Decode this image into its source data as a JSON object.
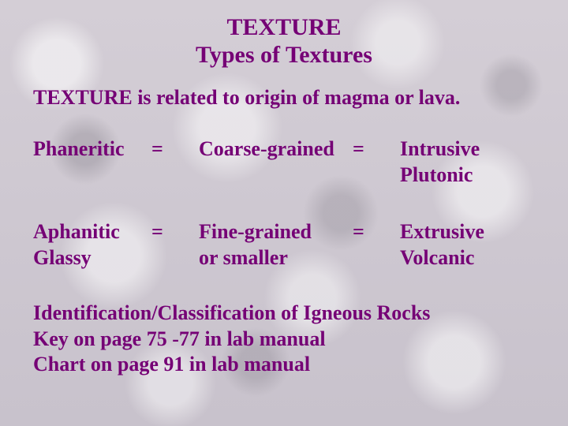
{
  "colors": {
    "text": "#750075",
    "bg_base": "#d0cbd3"
  },
  "typography": {
    "family": "Times New Roman",
    "title_size_pt": 22,
    "body_size_pt": 19,
    "weight": "bold"
  },
  "title": {
    "line1": "TEXTURE",
    "line2": "Types of Textures"
  },
  "intro": "TEXTURE is related to origin of magma or lava.",
  "rows": [
    {
      "left_l1": "Phaneritic",
      "left_l2": "",
      "eq1": "=",
      "mid_l1": "Coarse-grained",
      "mid_l2": "",
      "eq2": "=",
      "right_l1": "Intrusive",
      "right_l2": "Plutonic"
    },
    {
      "left_l1": "Aphanitic",
      "left_l2": "Glassy",
      "eq1": "=",
      "mid_l1": "Fine-grained",
      "mid_l2": "or smaller",
      "eq2": "=",
      "right_l1": "Extrusive",
      "right_l2": "Volcanic"
    }
  ],
  "footer": {
    "line1": "Identification/Classification of Igneous Rocks",
    "line2": "Key on page 75 -77 in lab manual",
    "line3": "Chart on page 91 in lab manual"
  }
}
